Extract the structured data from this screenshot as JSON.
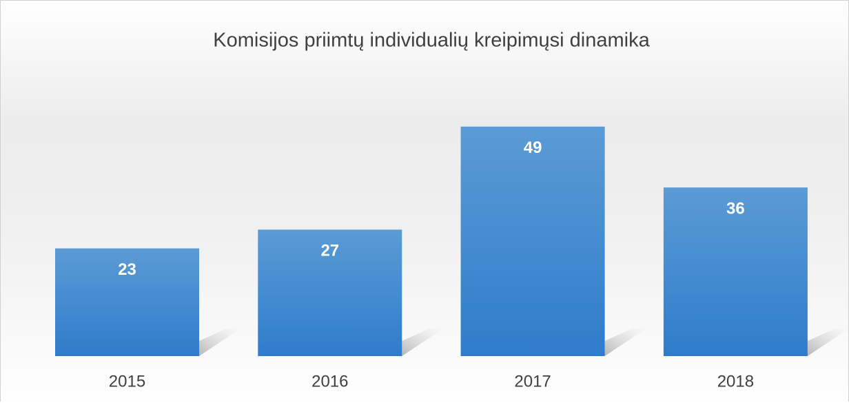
{
  "chart_data": {
    "type": "bar",
    "title": "Komisijos priimtų individualių kreipimųsi dinamika",
    "categories": [
      "2015",
      "2016",
      "2017",
      "2018"
    ],
    "values": [
      23,
      27,
      49,
      36
    ],
    "color": "#4a8fd4"
  }
}
